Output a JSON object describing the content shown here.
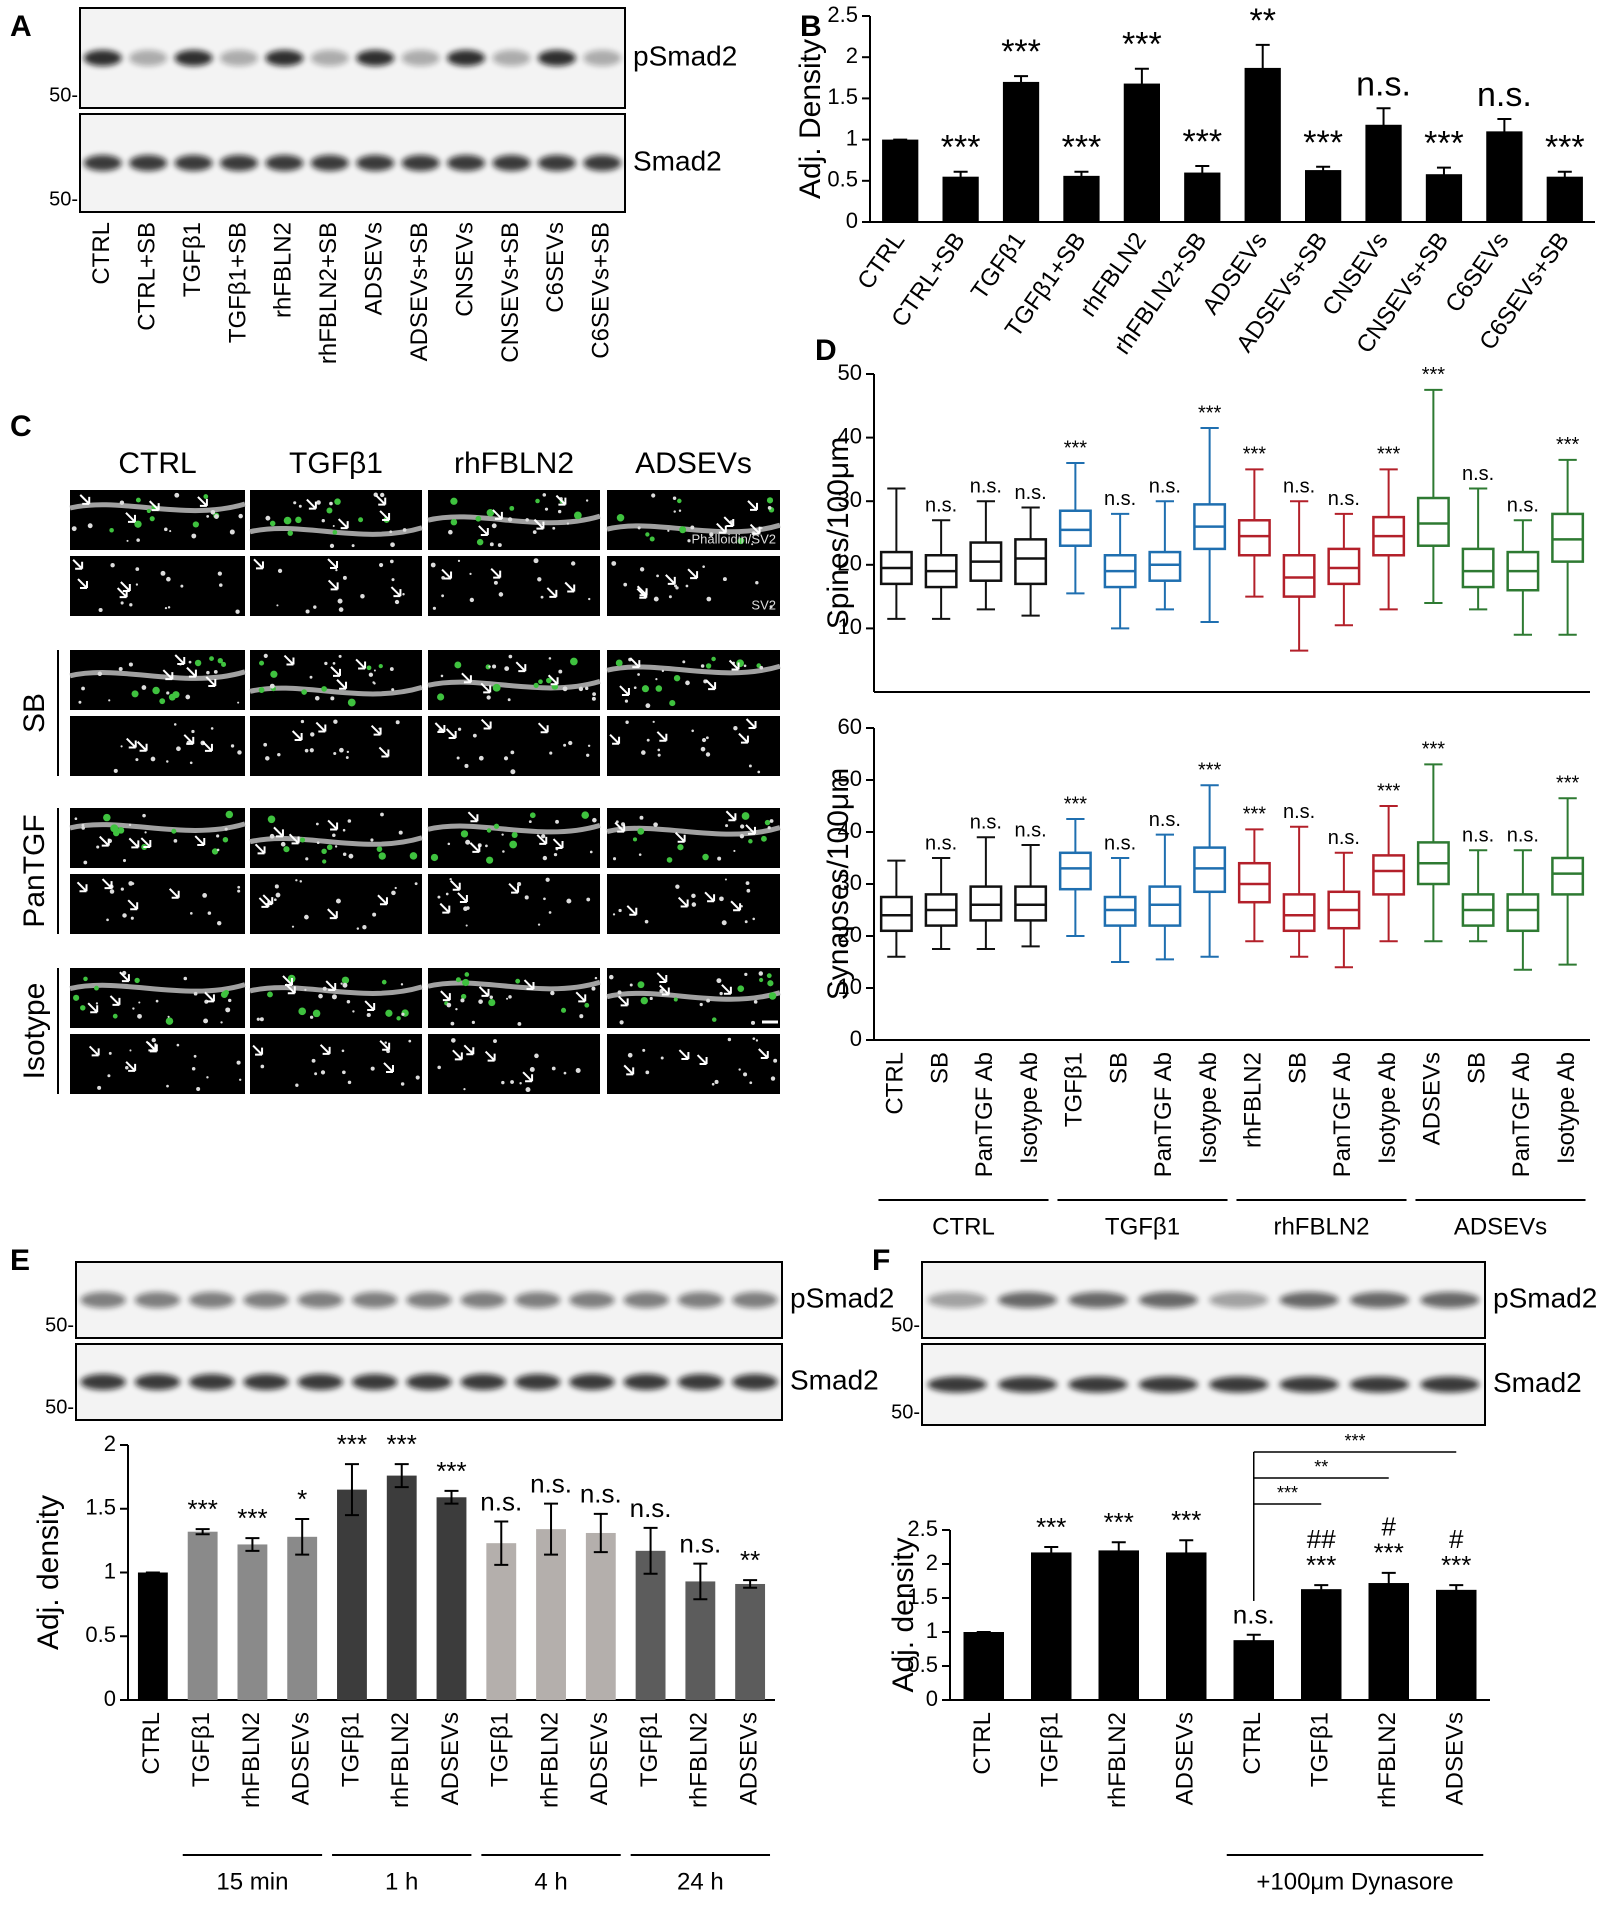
{
  "panel_labels": [
    "A",
    "B",
    "C",
    "D",
    "E",
    "F"
  ],
  "blots": [
    {
      "bands": [
        "pSmad2",
        "Smad2"
      ],
      "markers": [
        "50-",
        "50-"
      ],
      "lanes": [
        "CTRL",
        "CTRL+SB",
        "TGFβ1",
        "TGFβ1+SB",
        "rhFBLN2",
        "rhFBLN2+SB",
        "ADSEVs",
        "ADSEVs+SB",
        "CNSEVs",
        "CNSEVs+SB",
        "C6SEVs",
        "C6SEVs+SB"
      ]
    },
    {
      "bands": [
        "pSmad2",
        "Smad2"
      ],
      "markers": [
        "50-",
        "50-"
      ]
    },
    {
      "bands": [
        "pSmad2",
        "Smad2"
      ],
      "markers": [
        "50-",
        "50-"
      ]
    }
  ],
  "micrographs": {
    "columns": [
      "CTRL",
      "TGFβ1",
      "rhFBLN2",
      "ADSEVs"
    ],
    "rows": [
      "SB",
      "PanTGF",
      "Isotype"
    ],
    "stain_labels": [
      "Phalloidin/SV2",
      "SV2"
    ]
  },
  "chart_data": [
    {
      "type": "bar",
      "ylabel": "Adj. Density",
      "categories": [
        "CTRL",
        "CTRL+SB",
        "TGFβ1",
        "TGFβ1+SB",
        "rhFBLN2",
        "rhFBLN2+SB",
        "ADSEVs",
        "ADSEVs+SB",
        "CNSEVs",
        "CNSEVs+SB",
        "C6SEVs",
        "C6SEVs+SB"
      ],
      "values": [
        1,
        0.55,
        1.7,
        0.56,
        1.68,
        0.6,
        1.87,
        0.63,
        1.18,
        0.58,
        1.1,
        0.55
      ],
      "errors": [
        0,
        0.06,
        0.07,
        0.05,
        0.18,
        0.08,
        0.28,
        0.04,
        0.2,
        0.08,
        0.15,
        0.06
      ],
      "annotations": [
        null,
        "***",
        "***",
        "***",
        "***",
        "***",
        "**",
        "***",
        "n.s.",
        "***",
        "n.s.",
        "***"
      ],
      "color": "#000000",
      "ylim": [
        0,
        2.5
      ],
      "yticks": [
        0,
        0.5,
        1,
        1.5,
        2,
        2.5
      ]
    },
    {
      "type": "box",
      "ylabel": "Spines/100μm",
      "colors": [
        "#111111",
        "#111111",
        "#111111",
        "#111111",
        "#1f6fb0",
        "#1f6fb0",
        "#1f6fb0",
        "#1f6fb0",
        "#b3202a",
        "#b3202a",
        "#b3202a",
        "#b3202a",
        "#2e7a32",
        "#2e7a32",
        "#2e7a32",
        "#2e7a32"
      ],
      "min": [
        11.5,
        11.5,
        13,
        12,
        15.5,
        10,
        13,
        11,
        15,
        6.5,
        10.5,
        13,
        14,
        13,
        9,
        9
      ],
      "q1": [
        17,
        16.5,
        17.5,
        17,
        23,
        16.5,
        17.5,
        22.5,
        21.5,
        15,
        17,
        21.5,
        23,
        16.5,
        16,
        20.5
      ],
      "median": [
        19.5,
        19,
        20.5,
        21,
        25.5,
        19,
        20,
        26,
        24.5,
        18,
        19.5,
        24.5,
        26.5,
        19,
        19,
        24
      ],
      "q3": [
        22,
        21.5,
        23.5,
        24,
        28.5,
        21.5,
        22,
        29.5,
        27,
        21.5,
        22.5,
        27.5,
        30.5,
        22.5,
        22,
        28
      ],
      "max": [
        32,
        27,
        30,
        29,
        36,
        28,
        30,
        41.5,
        35,
        30,
        28,
        35,
        47.5,
        32,
        27,
        36.5
      ],
      "annotations": [
        null,
        "n.s.",
        "n.s.",
        "n.s.",
        "***",
        "n.s.",
        "n.s.",
        "***",
        "***",
        "n.s.",
        "n.s.",
        "***",
        "***",
        "n.s.",
        "n.s.",
        "***"
      ],
      "ylim": [
        0,
        50
      ],
      "yticks": [
        10,
        20,
        30,
        40,
        50
      ]
    },
    {
      "type": "box",
      "ylabel": "Synapses/100μm",
      "categories": [
        "CTRL",
        "SB",
        "PanTGF Ab",
        "Isotype Ab",
        "TGFβ1",
        "SB",
        "PanTGF Ab",
        "Isotype Ab",
        "rhFBLN2",
        "SB",
        "PanTGF Ab",
        "Isotype Ab",
        "ADSEVs",
        "SB",
        "PanTGF Ab",
        "Isotype Ab"
      ],
      "colors": [
        "#111111",
        "#111111",
        "#111111",
        "#111111",
        "#1f6fb0",
        "#1f6fb0",
        "#1f6fb0",
        "#1f6fb0",
        "#b3202a",
        "#b3202a",
        "#b3202a",
        "#b3202a",
        "#2e7a32",
        "#2e7a32",
        "#2e7a32",
        "#2e7a32"
      ],
      "min": [
        16,
        17.5,
        17.5,
        18,
        20,
        15,
        15.5,
        16,
        19,
        16,
        14,
        19,
        19,
        19,
        13.5,
        14.5
      ],
      "q1": [
        21,
        22,
        23,
        23,
        29,
        22,
        22,
        28.5,
        26.5,
        21,
        21.5,
        28,
        30,
        22,
        21,
        28
      ],
      "median": [
        24,
        25,
        26,
        26,
        33,
        25,
        26,
        33,
        30,
        24,
        25,
        32.5,
        34,
        25,
        25,
        32
      ],
      "q3": [
        27.5,
        28,
        29.5,
        29.5,
        36,
        27.5,
        29.5,
        37,
        34,
        28,
        28.5,
        35.5,
        38,
        28,
        28,
        35
      ],
      "max": [
        34.5,
        35,
        39,
        37.5,
        42.5,
        35,
        39.5,
        49,
        40.5,
        41,
        36,
        45,
        53,
        36.5,
        36.5,
        46.5
      ],
      "annotations": [
        null,
        "n.s.",
        "n.s.",
        "n.s.",
        "***",
        "n.s.",
        "n.s.",
        "***",
        "***",
        "n.s.",
        "n.s.",
        "***",
        "***",
        "n.s.",
        "n.s.",
        "***"
      ],
      "groups": [
        {
          "label": "CTRL",
          "members": [
            0,
            1,
            2,
            3
          ]
        },
        {
          "label": "TGFβ1",
          "members": [
            4,
            5,
            6,
            7
          ]
        },
        {
          "label": "rhFBLN2",
          "members": [
            8,
            9,
            10,
            11
          ]
        },
        {
          "label": "ADSEVs",
          "members": [
            12,
            13,
            14,
            15
          ]
        }
      ],
      "ylim": [
        0,
        60
      ],
      "yticks": [
        0,
        10,
        20,
        30,
        40,
        50,
        60
      ]
    },
    {
      "type": "bar",
      "ylabel": "Adj. density",
      "categories": [
        "CTRL",
        "TGFβ1",
        "rhFBLN2",
        "ADSEVs",
        "TGFβ1",
        "rhFBLN2",
        "ADSEVs",
        "TGFβ1",
        "rhFBLN2",
        "ADSEVs",
        "TGFβ1",
        "rhFBLN2",
        "ADSEVs"
      ],
      "values": [
        1,
        1.32,
        1.22,
        1.28,
        1.65,
        1.76,
        1.59,
        1.23,
        1.34,
        1.31,
        1.17,
        0.93,
        0.91
      ],
      "errors": [
        0,
        0.02,
        0.05,
        0.14,
        0.2,
        0.09,
        0.05,
        0.17,
        0.2,
        0.15,
        0.18,
        0.14,
        0.03
      ],
      "annotations": [
        null,
        "***",
        "***",
        "*",
        "***",
        "***",
        "***",
        "n.s.",
        "n.s.",
        "n.s.",
        "n.s.",
        "n.s.",
        "**"
      ],
      "colors": [
        "#000000",
        "#8a8a8a",
        "#8a8a8a",
        "#8a8a8a",
        "#3c3c3c",
        "#3c3c3c",
        "#3c3c3c",
        "#b4afac",
        "#b4afac",
        "#b4afac",
        "#5c5c5c",
        "#5c5c5c",
        "#5c5c5c"
      ],
      "groups": [
        {
          "label": "15 min",
          "members": [
            1,
            2,
            3
          ]
        },
        {
          "label": "1 h",
          "members": [
            4,
            5,
            6
          ]
        },
        {
          "label": "4 h",
          "members": [
            7,
            8,
            9
          ]
        },
        {
          "label": "24 h",
          "members": [
            10,
            11,
            12
          ]
        }
      ],
      "ylim": [
        0,
        2
      ],
      "yticks": [
        0,
        0.5,
        1,
        1.5,
        2
      ]
    },
    {
      "type": "bar",
      "ylabel": "Adj. density",
      "categories": [
        "CTRL",
        "TGFβ1",
        "rhFBLN2",
        "ADSEVs",
        "CTRL",
        "TGFβ1",
        "rhFBLN2",
        "ADSEVs"
      ],
      "values": [
        1,
        2.17,
        2.2,
        2.17,
        0.88,
        1.63,
        1.72,
        1.62
      ],
      "errors": [
        0,
        0.08,
        0.12,
        0.18,
        0.08,
        0.06,
        0.15,
        0.07
      ],
      "annotations": [
        null,
        "***",
        "***",
        "***",
        "n.s.",
        "***",
        "***",
        "***"
      ],
      "secondary_annotations": [
        null,
        null,
        null,
        null,
        null,
        "##",
        "#",
        "#"
      ],
      "comparisons": [
        {
          "from": 4,
          "to": 5,
          "label": "***"
        },
        {
          "from": 4,
          "to": 6,
          "label": "**"
        },
        {
          "from": 4,
          "to": 7,
          "label": "***"
        }
      ],
      "groups": [
        {
          "label": "+100μm Dynasore",
          "members": [
            4,
            5,
            6,
            7
          ]
        }
      ],
      "color": "#000000",
      "ylim": [
        0,
        2.5
      ],
      "yticks": [
        0,
        0.5,
        1,
        1.5,
        2,
        2.5
      ]
    }
  ]
}
